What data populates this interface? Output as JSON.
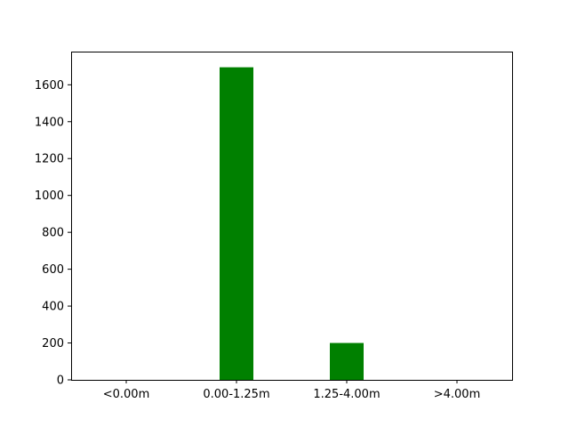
{
  "chart_data": {
    "type": "bar",
    "categories": [
      "<0.00m",
      "0.00-1.25m",
      "1.25-4.00m",
      ">4.00m"
    ],
    "values": [
      0,
      1695,
      200,
      0
    ],
    "title": "",
    "xlabel": "",
    "ylabel": "",
    "ylim": [
      0,
      1780
    ],
    "yticks": [
      0,
      200,
      400,
      600,
      800,
      1000,
      1200,
      1400,
      1600
    ],
    "grid": false,
    "legend": "none",
    "bar_color": "#008000"
  }
}
